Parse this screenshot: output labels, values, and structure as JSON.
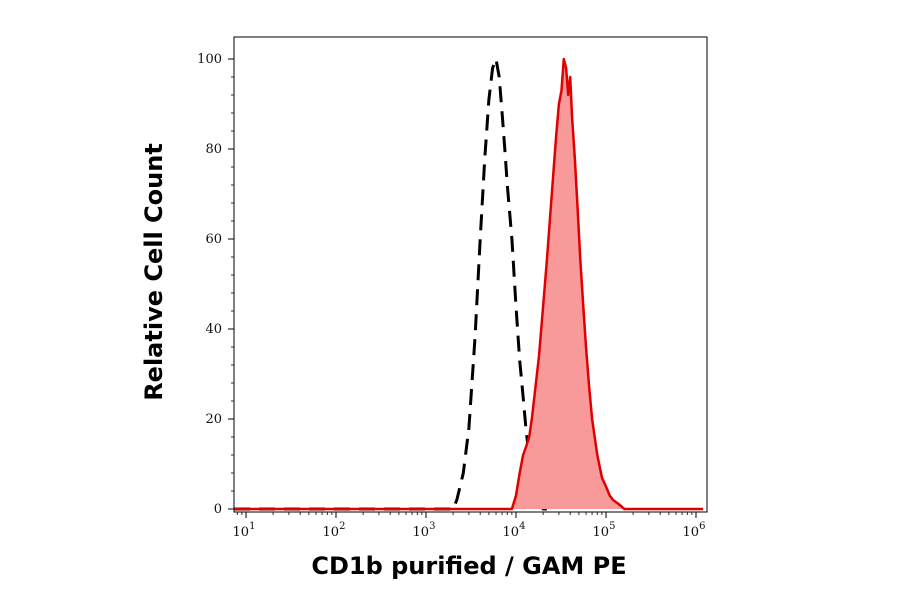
{
  "chart_data": {
    "type": "area",
    "xlabel": "CD1b purified / GAM PE",
    "ylabel": "Relative Cell Count",
    "x_scale": "log",
    "xlim": [
      5,
      1200000
    ],
    "ylim": [
      0,
      105
    ],
    "x_ticks": [
      {
        "value": 10,
        "base": "10",
        "exp": "1"
      },
      {
        "value": 100,
        "base": "10",
        "exp": "2"
      },
      {
        "value": 1000,
        "base": "10",
        "exp": "3"
      },
      {
        "value": 10000,
        "base": "10",
        "exp": "4"
      },
      {
        "value": 100000,
        "base": "10",
        "exp": "5"
      },
      {
        "value": 1000000,
        "base": "10",
        "exp": "6"
      }
    ],
    "y_ticks": [
      {
        "value": 0,
        "label": "0"
      },
      {
        "value": 20,
        "label": "20"
      },
      {
        "value": 40,
        "label": "40"
      },
      {
        "value": 60,
        "label": "60"
      },
      {
        "value": 80,
        "label": "80"
      },
      {
        "value": 100,
        "label": "100"
      }
    ],
    "series": [
      {
        "style": "dashed",
        "color": "#000000",
        "x": [
          5,
          2000,
          2200,
          2600,
          3000,
          3500,
          4000,
          4500,
          5000,
          5500,
          6000,
          6500,
          7000,
          7500,
          8000,
          9000,
          10000,
          11000,
          12000,
          13000,
          14000,
          16000,
          18000,
          20000,
          22000
        ],
        "y": [
          0,
          0,
          2,
          8,
          18,
          38,
          60,
          78,
          91,
          98,
          100,
          96,
          88,
          80,
          72,
          60,
          45,
          33,
          25,
          17,
          12,
          5,
          2,
          0,
          0
        ]
      },
      {
        "style": "filled",
        "color": "#e00000",
        "fill": "#f99a9a",
        "x": [
          5,
          9000,
          10000,
          11000,
          12000,
          13000,
          14000,
          15000,
          16000,
          18000,
          20000,
          22000,
          25000,
          28000,
          30000,
          32000,
          34000,
          36000,
          38000,
          40000,
          42000,
          45000,
          48000,
          52000,
          56000,
          60000,
          65000,
          70000,
          80000,
          90000,
          100000,
          110000,
          120000,
          140000,
          160000,
          1200000
        ],
        "y": [
          0,
          0,
          3,
          8,
          12,
          14,
          16,
          20,
          25,
          34,
          45,
          55,
          70,
          83,
          90,
          93,
          100,
          98,
          92,
          96,
          87,
          78,
          68,
          55,
          45,
          36,
          27,
          20,
          12,
          7,
          5,
          3,
          2,
          1,
          0,
          0
        ]
      }
    ]
  }
}
